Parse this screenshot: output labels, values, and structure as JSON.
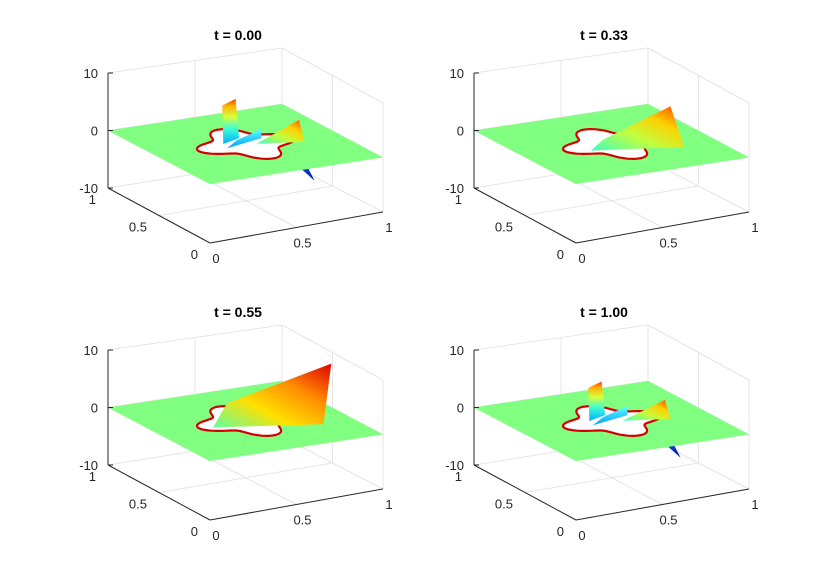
{
  "figure": {
    "background": "#ffffff",
    "plane_color": "#80ff80",
    "interface_color": "#d40000"
  },
  "chart_data": [
    {
      "type": "surface",
      "title": "t = 0.00",
      "zlim": [
        -10,
        10
      ],
      "xlim": [
        0,
        1
      ],
      "ylim": [
        0,
        1
      ],
      "z_ticks": [
        "10",
        "0",
        "-10"
      ],
      "x_ticks": [
        "0",
        "0.5",
        "1"
      ],
      "y_ticks": [
        "1",
        "0.5",
        "0"
      ],
      "grid": true,
      "peak_max": 7,
      "peak_min": -6
    },
    {
      "type": "surface",
      "title": "t = 0.33",
      "zlim": [
        -10,
        10
      ],
      "xlim": [
        0,
        1
      ],
      "ylim": [
        0,
        1
      ],
      "z_ticks": [
        "10",
        "0",
        "-10"
      ],
      "x_ticks": [
        "0",
        "0.5",
        "1"
      ],
      "y_ticks": [
        "1",
        "0.5",
        "0"
      ],
      "grid": true,
      "peak_max": 4,
      "peak_min": -1
    },
    {
      "type": "surface",
      "title": "t = 0.55",
      "zlim": [
        -10,
        10
      ],
      "xlim": [
        0,
        1
      ],
      "ylim": [
        0,
        1
      ],
      "z_ticks": [
        "10",
        "0",
        "-10"
      ],
      "x_ticks": [
        "0",
        "0.5",
        "1"
      ],
      "y_ticks": [
        "1",
        "0.5",
        "0"
      ],
      "grid": true,
      "peak_max": 10,
      "peak_min": -3
    },
    {
      "type": "surface",
      "title": "t = 1.00",
      "zlim": [
        -10,
        10
      ],
      "xlim": [
        0,
        1
      ],
      "ylim": [
        0,
        1
      ],
      "z_ticks": [
        "10",
        "0",
        "-10"
      ],
      "x_ticks": [
        "0",
        "0.5",
        "1"
      ],
      "y_ticks": [
        "1",
        "0.5",
        "0"
      ],
      "grid": true,
      "peak_max": 6,
      "peak_min": -6
    }
  ]
}
